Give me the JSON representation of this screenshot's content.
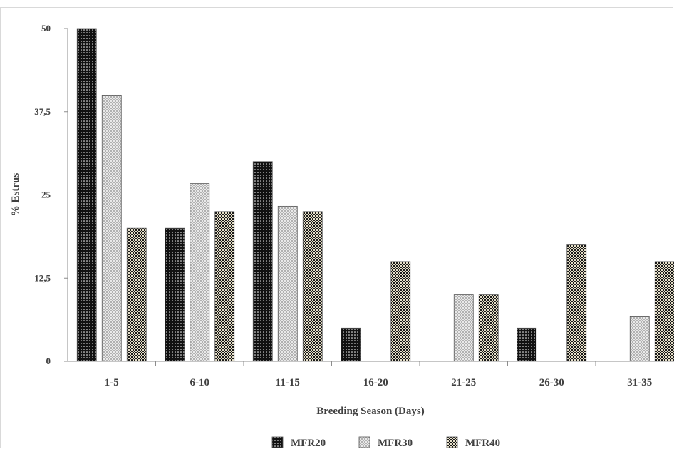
{
  "chart_data": {
    "type": "bar",
    "title": "",
    "xlabel": "Breeding Season (Days)",
    "ylabel": "% Estrus",
    "categories": [
      "1-5",
      "6-10",
      "11-15",
      "16-20",
      "21-25",
      "26-30",
      "31-35"
    ],
    "yticks": [
      "0",
      "12,5",
      "25",
      "37,5",
      "50"
    ],
    "ylim": [
      0,
      50
    ],
    "grid": false,
    "legend_position": "bottom",
    "series": [
      {
        "name": "MFR20",
        "values": [
          50,
          20,
          30,
          5,
          0,
          5,
          0
        ],
        "pattern": "black-dots",
        "color": "#111111"
      },
      {
        "name": "MFR30",
        "values": [
          40,
          26.7,
          23.3,
          0,
          10,
          0,
          6.7
        ],
        "pattern": "light-crosshatch",
        "color": "#e6e6e6"
      },
      {
        "name": "MFR40",
        "values": [
          20,
          22.5,
          22.5,
          15,
          10,
          17.5,
          15
        ],
        "pattern": "checkerboard",
        "color": "#d9d2bd"
      }
    ]
  }
}
